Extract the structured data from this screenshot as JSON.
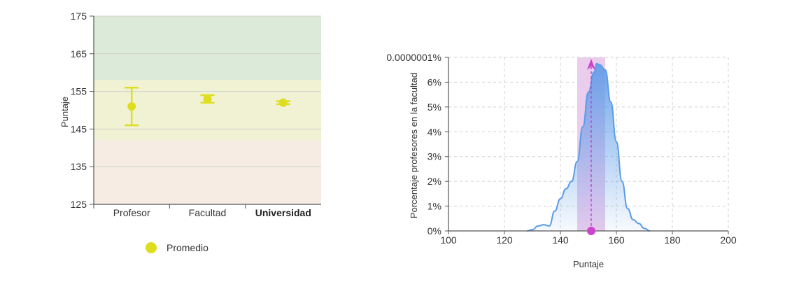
{
  "chart_data": [
    {
      "type": "errorbar",
      "ylabel": "Puntaje",
      "ylim": [
        125,
        175
      ],
      "yticks": [
        125,
        135,
        145,
        155,
        165,
        175
      ],
      "bands": [
        {
          "from": 125,
          "to": 142,
          "color": "#f6ece3"
        },
        {
          "from": 142,
          "to": 158,
          "color": "#f1f2d4"
        },
        {
          "from": 158,
          "to": 175,
          "color": "#dcebd9"
        }
      ],
      "categories": [
        "Profesor",
        "Facultad",
        "Universidad"
      ],
      "bold_category": "Universidad",
      "series": [
        {
          "name": "Promedio",
          "color": "#dede1e",
          "values": [
            151,
            153,
            152
          ],
          "low": [
            146,
            152,
            151.6
          ],
          "high": [
            156,
            154,
            152.4
          ]
        }
      ],
      "legend": {
        "position": "bottom-left",
        "label": "Promedio"
      }
    },
    {
      "type": "area",
      "xlabel": "Puntaje",
      "ylabel": "Porcentaje profesores en la facultad",
      "xlim": [
        100,
        200
      ],
      "xticks": [
        100,
        120,
        140,
        160,
        180,
        200
      ],
      "ylim": [
        0,
        7
      ],
      "yticks": [
        "0%",
        "1%",
        "2%",
        "3%",
        "4%",
        "5%",
        "6%"
      ],
      "top_tick_label": "0.0000001%",
      "grid": true,
      "line_color": "#5b9be8",
      "highlight_band": {
        "from": 146,
        "to": 156,
        "color": "#e6c3ea"
      },
      "marker": {
        "x": 151,
        "color": "#cc44cc"
      },
      "x": [
        128,
        130,
        132,
        134,
        136,
        138,
        140,
        142,
        144,
        146,
        148,
        150,
        152,
        153,
        154,
        156,
        158,
        160,
        162,
        164,
        166,
        168,
        170,
        172
      ],
      "y": [
        0,
        0.05,
        0.2,
        0.25,
        0.2,
        0.8,
        1.3,
        1.7,
        2.0,
        2.8,
        4.2,
        5.6,
        6.4,
        6.75,
        6.7,
        6.5,
        5.2,
        3.6,
        2.0,
        0.9,
        0.45,
        0.3,
        0.1,
        0
      ]
    }
  ]
}
